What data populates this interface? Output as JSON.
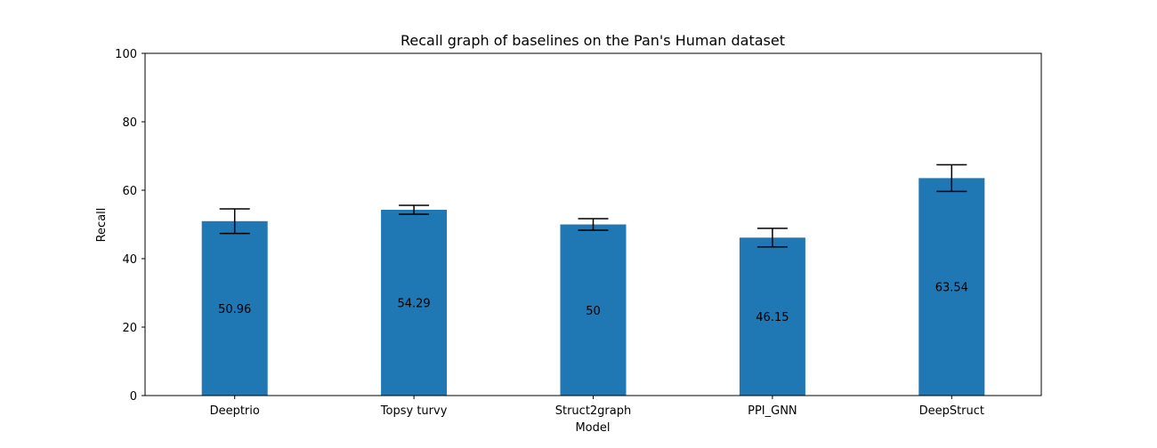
{
  "chart_data": {
    "type": "bar",
    "title": "Recall graph of baselines on the Pan's Human dataset",
    "xlabel": "Model",
    "ylabel": "Recall",
    "categories": [
      "Deeptrio",
      "Topsy turvy",
      "Struct2graph",
      "PPI_GNN",
      "DeepStruct"
    ],
    "values": [
      50.96,
      54.29,
      50,
      46.15,
      63.54
    ],
    "value_labels": [
      "50.96",
      "54.29",
      "50",
      "46.15",
      "63.54"
    ],
    "errors": [
      3.6,
      1.3,
      1.7,
      2.7,
      3.9
    ],
    "ylim": [
      0,
      100
    ],
    "yticks": [
      0,
      20,
      40,
      60,
      80,
      100
    ],
    "grid": false,
    "legend": "none",
    "bar_color": "#1f77b4"
  }
}
